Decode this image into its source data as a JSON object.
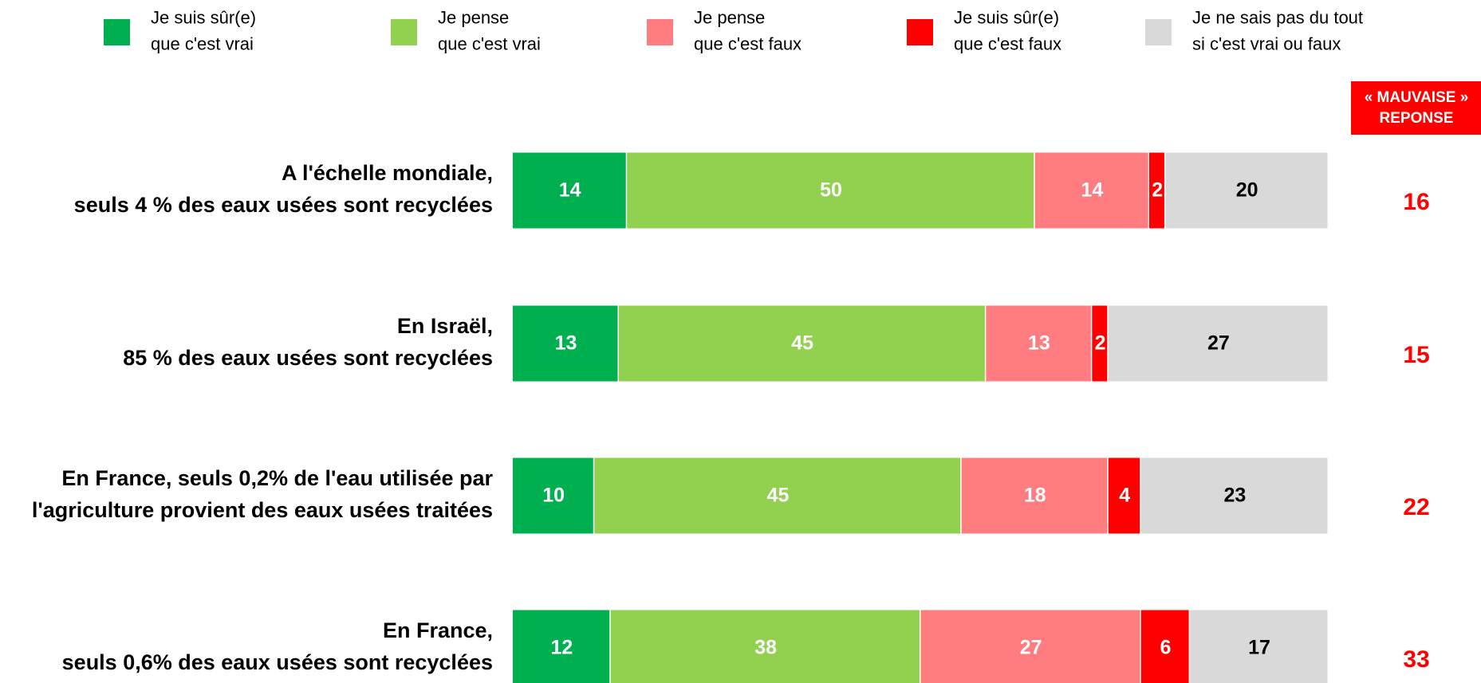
{
  "chart_data": {
    "type": "stacked_barh",
    "categories": [
      "A l'échelle mondiale,\nseuls 4 % des eaux usées sont recyclées",
      "En Israël,\n85 % des eaux usées sont recyclées",
      "En France, seuls 0,2% de l'eau utilisée par\nl'agriculture provient des eaux usées traitées",
      "En France,\nseuls 0,6% des eaux usées sont recyclées"
    ],
    "series": [
      {
        "name": "Je suis sûr(e)\nque c'est vrai",
        "color": "#00b050",
        "label_color": "#ffffff",
        "values": [
          14,
          13,
          10,
          12
        ]
      },
      {
        "name": "Je pense\nque c'est vrai",
        "color": "#92d050",
        "label_color": "#ffffff",
        "values": [
          50,
          45,
          45,
          38
        ]
      },
      {
        "name": "Je pense\nque c'est faux",
        "color": "#ff7c80",
        "label_color": "#ffffff",
        "values": [
          14,
          13,
          18,
          27
        ]
      },
      {
        "name": "Je suis sûr(e)\nque c'est faux",
        "color": "#ff0000",
        "label_color": "#ffffff",
        "values": [
          2,
          2,
          4,
          6
        ]
      },
      {
        "name": "Je ne sais pas du tout\nsi c'est vrai ou faux",
        "color": "#d9d9d9",
        "label_color": "#000000",
        "values": [
          20,
          27,
          23,
          17
        ]
      }
    ],
    "xlim": [
      0,
      100
    ],
    "wrong_answer": {
      "label": "« MAUVAISE »\nREPONSE",
      "color": "#ff0000",
      "values": [
        16,
        15,
        22,
        33
      ]
    }
  }
}
